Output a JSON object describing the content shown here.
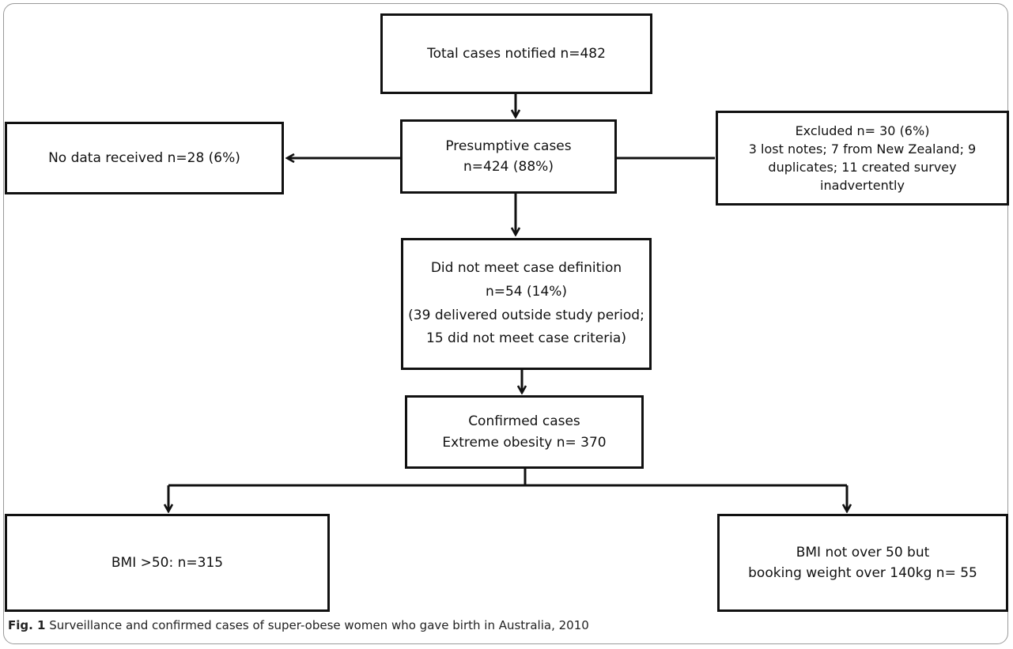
{
  "boxes": {
    "total": {
      "line1": "Total cases notified n=482"
    },
    "presumptive": {
      "line1": "Presumptive cases",
      "line2": "n=424 (88%)"
    },
    "no_data": {
      "line1": "No data received n=28 (6%)"
    },
    "excluded": {
      "line1": "Excluded n= 30 (6%)",
      "line2": "3 lost notes; 7 from New Zealand; 9",
      "line3": "duplicates; 11 created survey",
      "line4": "inadvertently"
    },
    "not_meet": {
      "line1": "Did not meet case definition",
      "line2": "n=54 (14%)",
      "line3": "(39 delivered outside study period;",
      "line4": "15 did not meet case criteria)"
    },
    "confirmed": {
      "line1": "Confirmed cases",
      "line2": "Extreme obesity n= 370"
    },
    "bmi50": {
      "line1": "BMI >50: n=315"
    },
    "bmi_not50": {
      "line1": "BMI not over 50 but",
      "line2": "booking weight over 140kg n= 55"
    }
  },
  "caption": {
    "label": "Fig. 1",
    "text": " Surveillance and confirmed cases of super-obese women who gave birth in Australia, 2010"
  }
}
